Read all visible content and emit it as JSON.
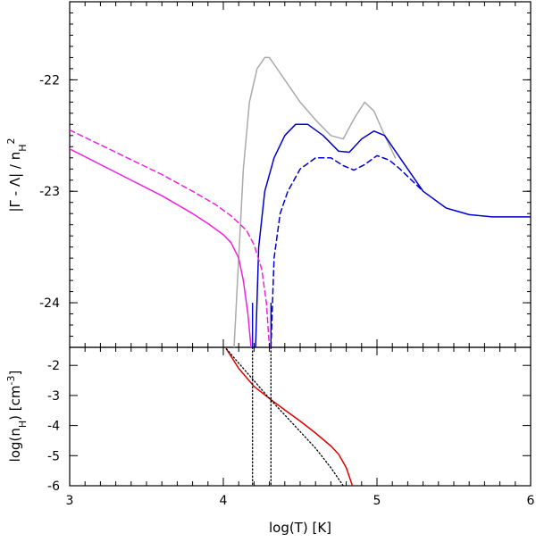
{
  "chart_data": [
    {
      "type": "line",
      "panel": "top",
      "xlabel": "",
      "ylabel": "|Γ - Λ| / n_H^2",
      "xlim": [
        3,
        6
      ],
      "ylim": [
        -24.4,
        -21.3
      ],
      "yticks": [
        {
          "v": -22,
          "label": "-22"
        },
        {
          "v": -23,
          "label": "-23"
        },
        {
          "v": -24,
          "label": "-24"
        }
      ],
      "series": [
        {
          "name": "gray solid",
          "color": "#aaaaaa",
          "dash": "",
          "x": [
            4.07,
            4.1,
            4.13,
            4.17,
            4.22,
            4.27,
            4.3,
            4.35,
            4.4,
            4.5,
            4.6,
            4.7,
            4.78,
            4.85,
            4.92,
            4.98,
            5.05,
            5.12
          ],
          "y": [
            -24.4,
            -23.6,
            -22.8,
            -22.2,
            -21.9,
            -21.8,
            -21.8,
            -21.9,
            -22.0,
            -22.2,
            -22.36,
            -22.5,
            -22.53,
            -22.35,
            -22.2,
            -22.28,
            -22.5,
            -22.7
          ]
        },
        {
          "name": "blue solid",
          "color": "#0000cc",
          "dash": "",
          "x": [
            4.21,
            4.23,
            4.27,
            4.33,
            4.4,
            4.47,
            4.55,
            4.65,
            4.75,
            4.82,
            4.9,
            4.98,
            5.05,
            5.15,
            5.3,
            5.45,
            5.6,
            5.75,
            5.9,
            6.0
          ],
          "y": [
            -24.4,
            -23.5,
            -23.0,
            -22.7,
            -22.5,
            -22.4,
            -22.4,
            -22.5,
            -22.64,
            -22.65,
            -22.53,
            -22.46,
            -22.5,
            -22.7,
            -23.0,
            -23.15,
            -23.21,
            -23.23,
            -23.23,
            -23.23
          ]
        },
        {
          "name": "blue dashed",
          "color": "#0000cc",
          "dash": "6,4",
          "x": [
            4.31,
            4.33,
            4.37,
            4.42,
            4.5,
            4.6,
            4.7,
            4.78,
            4.85,
            4.92,
            5.0,
            5.08,
            5.15,
            5.3
          ],
          "y": [
            -24.4,
            -23.6,
            -23.2,
            -23.0,
            -22.8,
            -22.7,
            -22.7,
            -22.77,
            -22.81,
            -22.76,
            -22.68,
            -22.72,
            -22.8,
            -23.0
          ]
        },
        {
          "name": "magenta solid",
          "color": "#ee22dd",
          "dash": "",
          "x": [
            3.0,
            3.3,
            3.6,
            3.8,
            3.9,
            4.0,
            4.05,
            4.1,
            4.13,
            4.16,
            4.18
          ],
          "y": [
            -22.62,
            -22.83,
            -23.04,
            -23.2,
            -23.29,
            -23.39,
            -23.46,
            -23.6,
            -23.8,
            -24.1,
            -24.4
          ]
        },
        {
          "name": "magenta dashed",
          "color": "#ee22dd",
          "dash": "6,4",
          "x": [
            3.0,
            3.3,
            3.6,
            3.8,
            3.95,
            4.05,
            4.15,
            4.2,
            4.25,
            4.28,
            4.3
          ],
          "y": [
            -22.45,
            -22.65,
            -22.85,
            -23.0,
            -23.12,
            -23.22,
            -23.35,
            -23.48,
            -23.7,
            -24.0,
            -24.4
          ]
        }
      ]
    },
    {
      "type": "line",
      "panel": "bottom",
      "xlabel": "log(T) [K]",
      "ylabel": "log(n_H) [cm^-3]",
      "xlim": [
        3,
        6
      ],
      "ylim": [
        -6,
        -1.4
      ],
      "xticks": [
        {
          "v": 3,
          "label": "3"
        },
        {
          "v": 4,
          "label": "4"
        },
        {
          "v": 5,
          "label": "5"
        },
        {
          "v": 6,
          "label": "6"
        }
      ],
      "yticks": [
        {
          "v": -2,
          "label": "-2"
        },
        {
          "v": -3,
          "label": "-3"
        },
        {
          "v": -4,
          "label": "-4"
        },
        {
          "v": -5,
          "label": "-5"
        },
        {
          "v": -6,
          "label": "-6"
        }
      ],
      "series": [
        {
          "name": "red solid",
          "color": "#dd0000",
          "dash": "",
          "x": [
            4.02,
            4.1,
            4.2,
            4.3,
            4.4,
            4.5,
            4.6,
            4.7,
            4.75,
            4.8,
            4.84
          ],
          "y": [
            -1.45,
            -2.1,
            -2.7,
            -3.1,
            -3.48,
            -3.85,
            -4.25,
            -4.68,
            -4.95,
            -5.4,
            -6.0
          ]
        },
        {
          "name": "black dotted",
          "color": "#000000",
          "dash": "1.5,2.5",
          "x": [
            4.02,
            4.3,
            4.5,
            4.6,
            4.7,
            4.78
          ],
          "y": [
            -1.45,
            -3.1,
            -4.2,
            -4.75,
            -5.4,
            -6.0
          ]
        },
        {
          "name": "vline 4.19",
          "color": "#000000",
          "dash": "1.5,2.5",
          "x": [
            4.19,
            4.19
          ],
          "y": [
            -1.4,
            -6.0
          ]
        },
        {
          "name": "vline 4.31",
          "color": "#000000",
          "dash": "1.5,2.5",
          "x": [
            4.31,
            4.31
          ],
          "y": [
            -1.4,
            -6.0
          ]
        }
      ]
    }
  ],
  "panel_vlines": [
    {
      "panel": "top",
      "x": 4.19,
      "color": "#0000cc"
    },
    {
      "panel": "top",
      "x": 4.31,
      "color": "#0000cc"
    }
  ]
}
